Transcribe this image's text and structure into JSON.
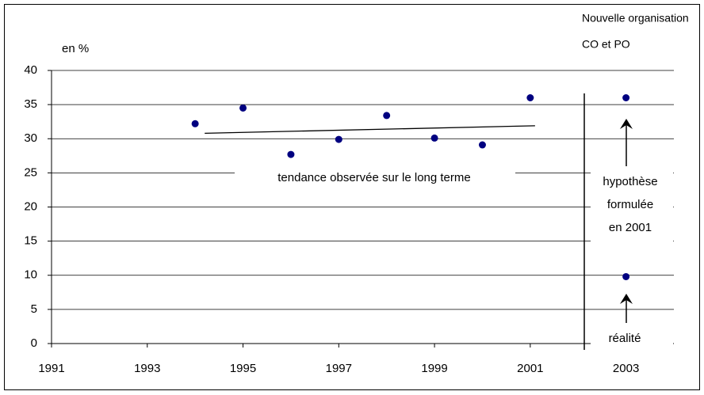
{
  "chart_data": {
    "type": "scatter",
    "y_label": "en %",
    "header": [
      "Nouvelle organisation",
      "CO et PO"
    ],
    "x": [
      1994,
      1995,
      1996,
      1997,
      1998,
      1999,
      2000,
      2001,
      2003,
      2003
    ],
    "values": [
      32.2,
      34.5,
      27.7,
      29.9,
      33.4,
      30.1,
      29.1,
      36.0,
      36.0,
      9.8
    ],
    "color": "#000080",
    "trend": {
      "x": [
        1994.2,
        2001.1
      ],
      "y": [
        30.8,
        31.9
      ]
    },
    "trend_label": "tendance observée sur le long terme",
    "hypothesis_label": [
      "hypothèse",
      "formulée",
      "en 2001"
    ],
    "reality_label": "réalité",
    "xlim": [
      1991,
      2004
    ],
    "xticks": [
      1991,
      1993,
      1995,
      1997,
      1999,
      2001,
      2003
    ],
    "ylim": [
      0,
      40
    ],
    "yticks": [
      0,
      5,
      10,
      15,
      20,
      25,
      30,
      35,
      40
    ],
    "grid": true
  }
}
